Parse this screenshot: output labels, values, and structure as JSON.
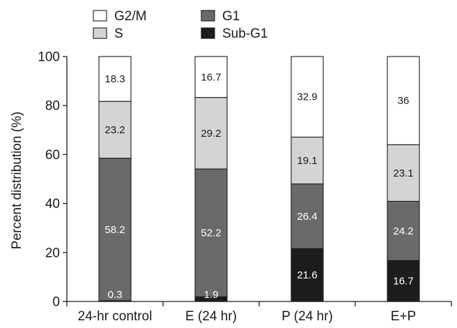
{
  "chart_data": {
    "type": "bar",
    "stacked": true,
    "categories": [
      "24-hr control",
      "E (24 hr)",
      "P (24 hr)",
      "E+P"
    ],
    "series": [
      {
        "name": "Sub-G1",
        "values": [
          0.3,
          1.9,
          21.6,
          16.7
        ],
        "color": "#1c1c1c",
        "label_color": "#ffffff"
      },
      {
        "name": "G1",
        "values": [
          58.2,
          52.2,
          26.4,
          24.2
        ],
        "color": "#6a6a6d",
        "label_color": "#ffffff"
      },
      {
        "name": "S",
        "values": [
          23.2,
          29.2,
          19.1,
          23.1
        ],
        "color": "#d4d4d4",
        "label_color": "#1a1a1a"
      },
      {
        "name": "G2/M",
        "values": [
          18.3,
          16.7,
          32.9,
          36
        ],
        "color": "#ffffff",
        "label_color": "#1a1a1a"
      }
    ],
    "legend": {
      "placement": "top-left",
      "order": [
        "G2/M",
        "S",
        "G1",
        "Sub-G1"
      ]
    },
    "title": "",
    "xlabel": "",
    "ylabel": "Percent distribution (%)",
    "ylim": [
      0,
      100
    ],
    "yticks": [
      0,
      20,
      40,
      60,
      80,
      100
    ],
    "grid": false
  }
}
